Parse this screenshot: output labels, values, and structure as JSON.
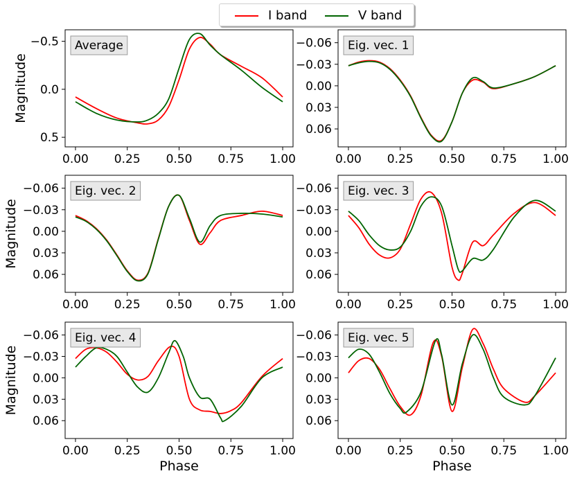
{
  "legend": {
    "entries": [
      {
        "label": "I band",
        "color": "#ff0000"
      },
      {
        "label": "V band",
        "color": "#006400"
      }
    ]
  },
  "chart_data": [
    {
      "type": "line",
      "title": "Average",
      "xlabel": "",
      "ylabel": "Magnitude",
      "xlim": [
        -0.05,
        1.05
      ],
      "ylim": [
        0.6,
        -0.62
      ],
      "y_inverted": true,
      "xticks": [
        "0.00",
        "0.25",
        "0.50",
        "0.75",
        "1.00"
      ],
      "yticks": [
        "−0.5",
        "0.0",
        "0.5"
      ],
      "ytick_values": [
        -0.5,
        0.0,
        0.5
      ],
      "series": [
        {
          "name": "I band",
          "x": [
            0.0,
            0.1,
            0.2,
            0.3,
            0.35,
            0.4,
            0.45,
            0.5,
            0.55,
            0.6,
            0.65,
            0.7,
            0.8,
            0.9,
            1.0
          ],
          "y": [
            0.08,
            0.2,
            0.3,
            0.35,
            0.36,
            0.32,
            0.18,
            -0.1,
            -0.42,
            -0.54,
            -0.47,
            -0.36,
            -0.24,
            -0.12,
            0.08
          ]
        },
        {
          "name": "V band",
          "x": [
            0.0,
            0.1,
            0.2,
            0.3,
            0.35,
            0.4,
            0.45,
            0.5,
            0.55,
            0.6,
            0.65,
            0.7,
            0.8,
            0.9,
            1.0
          ],
          "y": [
            0.13,
            0.25,
            0.32,
            0.34,
            0.32,
            0.25,
            0.1,
            -0.22,
            -0.52,
            -0.58,
            -0.46,
            -0.36,
            -0.2,
            -0.02,
            0.13
          ]
        }
      ]
    },
    {
      "type": "line",
      "title": "Eig. vec. 1",
      "xlabel": "",
      "ylabel": "",
      "xlim": [
        -0.05,
        1.05
      ],
      "ylim": [
        0.085,
        -0.078
      ],
      "y_inverted": true,
      "xticks": [
        "0.00",
        "0.25",
        "0.50",
        "0.75",
        "1.00"
      ],
      "yticks": [
        "−0.06",
        "−0.03",
        "0.00",
        "0.03",
        "0.06"
      ],
      "ytick_values": [
        -0.06,
        -0.03,
        0.0,
        0.03,
        0.06
      ],
      "series": [
        {
          "name": "I band",
          "x": [
            0.0,
            0.05,
            0.1,
            0.15,
            0.2,
            0.25,
            0.3,
            0.35,
            0.4,
            0.45,
            0.5,
            0.55,
            0.6,
            0.65,
            0.7,
            0.8,
            0.9,
            1.0
          ],
          "y": [
            -0.028,
            -0.033,
            -0.035,
            -0.033,
            -0.024,
            -0.008,
            0.014,
            0.044,
            0.069,
            0.076,
            0.05,
            0.01,
            -0.008,
            -0.005,
            0.004,
            -0.003,
            -0.013,
            -0.028
          ]
        },
        {
          "name": "V band",
          "x": [
            0.0,
            0.05,
            0.1,
            0.15,
            0.2,
            0.25,
            0.3,
            0.35,
            0.4,
            0.45,
            0.5,
            0.55,
            0.6,
            0.65,
            0.7,
            0.8,
            0.9,
            1.0
          ],
          "y": [
            -0.028,
            -0.032,
            -0.034,
            -0.032,
            -0.023,
            -0.007,
            0.015,
            0.045,
            0.07,
            0.077,
            0.05,
            0.01,
            -0.011,
            -0.006,
            0.003,
            -0.003,
            -0.013,
            -0.028
          ]
        }
      ]
    },
    {
      "type": "line",
      "title": "Eig. vec. 2",
      "xlabel": "",
      "ylabel": "Magnitude",
      "xlim": [
        -0.05,
        1.05
      ],
      "ylim": [
        0.085,
        -0.078
      ],
      "y_inverted": true,
      "xticks": [
        "0.00",
        "0.25",
        "0.50",
        "0.75",
        "1.00"
      ],
      "yticks": [
        "−0.06",
        "−0.03",
        "0.00",
        "0.03",
        "0.06"
      ],
      "ytick_values": [
        -0.06,
        -0.03,
        0.0,
        0.03,
        0.06
      ],
      "series": [
        {
          "name": "I band",
          "x": [
            0.0,
            0.05,
            0.1,
            0.15,
            0.2,
            0.25,
            0.3,
            0.35,
            0.4,
            0.45,
            0.5,
            0.55,
            0.6,
            0.65,
            0.7,
            0.8,
            0.9,
            1.0
          ],
          "y": [
            -0.022,
            -0.015,
            -0.004,
            0.012,
            0.033,
            0.055,
            0.068,
            0.058,
            0.01,
            -0.035,
            -0.05,
            -0.015,
            0.018,
            0.002,
            -0.015,
            -0.022,
            -0.028,
            -0.022
          ]
        },
        {
          "name": "V band",
          "x": [
            0.0,
            0.05,
            0.1,
            0.15,
            0.2,
            0.25,
            0.3,
            0.35,
            0.4,
            0.45,
            0.5,
            0.55,
            0.6,
            0.65,
            0.7,
            0.8,
            0.9,
            1.0
          ],
          "y": [
            -0.02,
            -0.014,
            -0.003,
            0.013,
            0.034,
            0.056,
            0.069,
            0.059,
            0.011,
            -0.035,
            -0.05,
            -0.018,
            0.015,
            -0.008,
            -0.022,
            -0.025,
            -0.024,
            -0.02
          ]
        }
      ]
    },
    {
      "type": "line",
      "title": "Eig. vec. 3",
      "xlabel": "",
      "ylabel": "",
      "xlim": [
        -0.05,
        1.05
      ],
      "ylim": [
        0.085,
        -0.078
      ],
      "y_inverted": true,
      "xticks": [
        "0.00",
        "0.25",
        "0.50",
        "0.75",
        "1.00"
      ],
      "yticks": [
        "−0.06",
        "−0.03",
        "0.00",
        "0.03",
        "0.06"
      ],
      "ytick_values": [
        -0.06,
        -0.03,
        0.0,
        0.03,
        0.06
      ],
      "series": [
        {
          "name": "I band",
          "x": [
            0.0,
            0.05,
            0.1,
            0.15,
            0.2,
            0.25,
            0.3,
            0.35,
            0.4,
            0.45,
            0.5,
            0.53,
            0.55,
            0.6,
            0.65,
            0.7,
            0.8,
            0.9,
            1.0
          ],
          "y": [
            -0.022,
            -0.005,
            0.018,
            0.033,
            0.037,
            0.025,
            -0.01,
            -0.045,
            -0.054,
            -0.025,
            0.05,
            0.068,
            0.058,
            0.015,
            0.02,
            0.005,
            -0.025,
            -0.04,
            -0.022
          ]
        },
        {
          "name": "V band",
          "x": [
            0.0,
            0.05,
            0.1,
            0.15,
            0.2,
            0.25,
            0.3,
            0.35,
            0.4,
            0.45,
            0.5,
            0.53,
            0.55,
            0.6,
            0.65,
            0.7,
            0.8,
            0.9,
            1.0
          ],
          "y": [
            -0.028,
            -0.015,
            0.005,
            0.02,
            0.026,
            0.022,
            0.0,
            -0.035,
            -0.048,
            -0.035,
            0.02,
            0.053,
            0.055,
            0.038,
            0.04,
            0.025,
            -0.02,
            -0.043,
            -0.028
          ]
        }
      ]
    },
    {
      "type": "line",
      "title": "Eig. vec. 4",
      "xlabel": "Phase",
      "ylabel": "Magnitude",
      "xlim": [
        -0.05,
        1.05
      ],
      "ylim": [
        0.085,
        -0.078
      ],
      "y_inverted": true,
      "xticks": [
        "0.00",
        "0.25",
        "0.50",
        "0.75",
        "1.00"
      ],
      "yticks": [
        "−0.06",
        "−0.03",
        "0.00",
        "0.03",
        "0.06"
      ],
      "ytick_values": [
        -0.06,
        -0.03,
        0.0,
        0.03,
        0.06
      ],
      "series": [
        {
          "name": "I band",
          "x": [
            0.0,
            0.05,
            0.1,
            0.15,
            0.2,
            0.25,
            0.3,
            0.35,
            0.4,
            0.46,
            0.5,
            0.55,
            0.6,
            0.65,
            0.7,
            0.75,
            0.8,
            0.9,
            1.0
          ],
          "y": [
            -0.027,
            -0.04,
            -0.042,
            -0.036,
            -0.022,
            -0.005,
            0.003,
            -0.002,
            -0.024,
            -0.044,
            -0.03,
            0.03,
            0.045,
            0.047,
            0.05,
            0.046,
            0.035,
            -0.002,
            -0.027
          ]
        },
        {
          "name": "V band",
          "x": [
            0.0,
            0.05,
            0.1,
            0.15,
            0.2,
            0.25,
            0.3,
            0.35,
            0.4,
            0.45,
            0.48,
            0.52,
            0.55,
            0.6,
            0.65,
            0.7,
            0.72,
            0.8,
            0.9,
            1.0
          ],
          "y": [
            -0.015,
            -0.03,
            -0.042,
            -0.04,
            -0.03,
            -0.008,
            0.013,
            0.02,
            0.0,
            -0.035,
            -0.052,
            -0.03,
            0.0,
            0.027,
            0.03,
            0.056,
            0.06,
            0.04,
            0.0,
            -0.015
          ]
        }
      ]
    },
    {
      "type": "line",
      "title": "Eig. vec. 5",
      "xlabel": "Phase",
      "ylabel": "",
      "xlim": [
        -0.05,
        1.05
      ],
      "ylim": [
        0.085,
        -0.078
      ],
      "y_inverted": true,
      "xticks": [
        "0.00",
        "0.25",
        "0.50",
        "0.75",
        "1.00"
      ],
      "yticks": [
        "−0.06",
        "−0.03",
        "0.00",
        "0.03",
        "0.06"
      ],
      "ytick_values": [
        -0.06,
        -0.03,
        0.0,
        0.03,
        0.06
      ],
      "series": [
        {
          "name": "I band",
          "x": [
            0.0,
            0.05,
            0.1,
            0.15,
            0.2,
            0.25,
            0.3,
            0.35,
            0.41,
            0.45,
            0.5,
            0.55,
            0.6,
            0.65,
            0.7,
            0.75,
            0.85,
            0.9,
            1.0
          ],
          "y": [
            -0.007,
            -0.024,
            -0.027,
            -0.012,
            0.015,
            0.04,
            0.052,
            0.025,
            -0.05,
            -0.03,
            0.047,
            -0.015,
            -0.068,
            -0.048,
            -0.012,
            0.015,
            0.034,
            0.025,
            -0.007
          ]
        },
        {
          "name": "V band",
          "x": [
            0.0,
            0.05,
            0.1,
            0.15,
            0.2,
            0.25,
            0.28,
            0.35,
            0.42,
            0.45,
            0.5,
            0.55,
            0.6,
            0.65,
            0.7,
            0.75,
            0.85,
            0.9,
            1.0
          ],
          "y": [
            -0.028,
            -0.04,
            -0.033,
            -0.008,
            0.022,
            0.043,
            0.048,
            0.02,
            -0.052,
            -0.032,
            0.038,
            -0.02,
            -0.06,
            -0.04,
            0.0,
            0.027,
            0.038,
            0.025,
            -0.028
          ]
        }
      ]
    }
  ]
}
